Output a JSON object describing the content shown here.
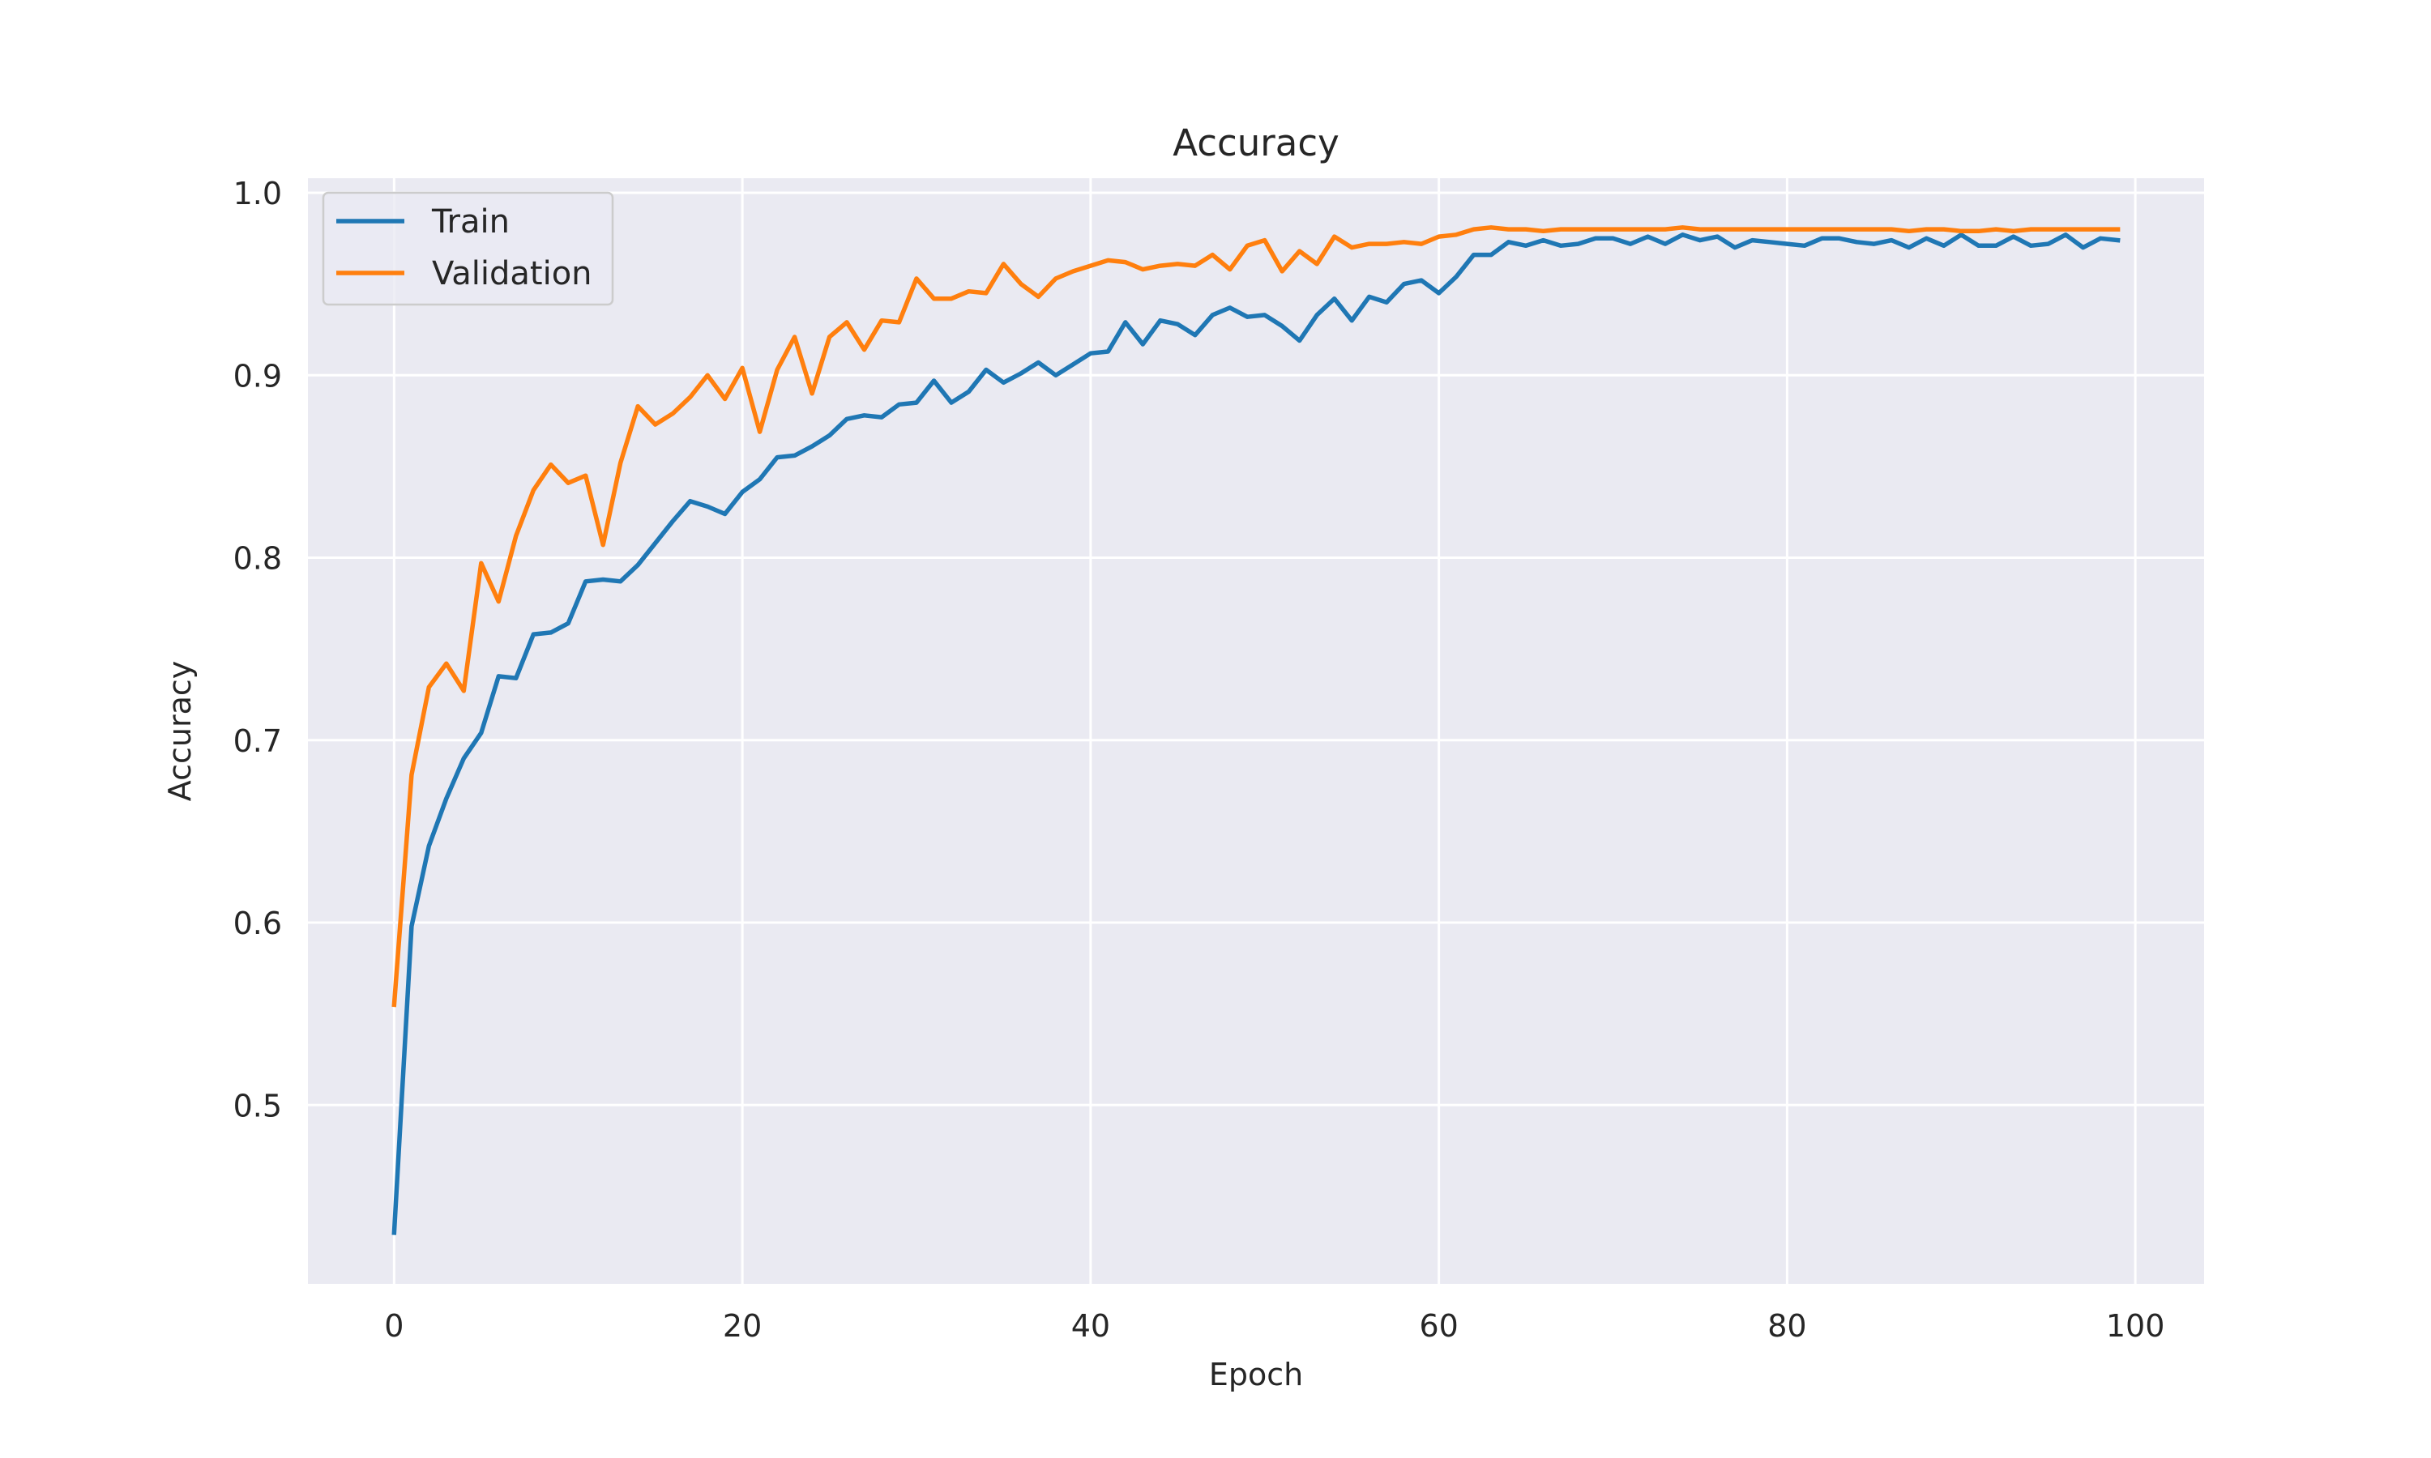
{
  "chart_data": {
    "type": "line",
    "title": "Accuracy",
    "xlabel": "Epoch",
    "ylabel": "Accuracy",
    "xlim": [
      -4.95,
      103.95
    ],
    "ylim": [
      0.402,
      1.008
    ],
    "x_ticks": [
      0,
      20,
      40,
      60,
      80,
      100
    ],
    "y_ticks": [
      0.5,
      0.6,
      0.7,
      0.8,
      0.9,
      1.0
    ],
    "y_tick_labels": [
      "0.5",
      "0.6",
      "0.7",
      "0.8",
      "0.9",
      "1.0"
    ],
    "grid": true,
    "legend_position": "top-left",
    "x": [
      0,
      1,
      2,
      3,
      4,
      5,
      6,
      7,
      8,
      9,
      10,
      11,
      12,
      13,
      14,
      15,
      16,
      17,
      18,
      19,
      20,
      21,
      22,
      23,
      24,
      25,
      26,
      27,
      28,
      29,
      30,
      31,
      32,
      33,
      34,
      35,
      36,
      37,
      38,
      39,
      40,
      41,
      42,
      43,
      44,
      45,
      46,
      47,
      48,
      49,
      50,
      51,
      52,
      53,
      54,
      55,
      56,
      57,
      58,
      59,
      60,
      61,
      62,
      63,
      64,
      65,
      66,
      67,
      68,
      69,
      70,
      71,
      72,
      73,
      74,
      75,
      76,
      77,
      78,
      79,
      80,
      81,
      82,
      83,
      84,
      85,
      86,
      87,
      88,
      89,
      90,
      91,
      92,
      93,
      94,
      95,
      96,
      97,
      98,
      99
    ],
    "series": [
      {
        "name": "Train",
        "color": "#1f77b4",
        "values": [
          0.43,
          0.598,
          0.642,
          0.668,
          0.69,
          0.704,
          0.735,
          0.734,
          0.758,
          0.759,
          0.764,
          0.787,
          0.788,
          0.787,
          0.796,
          0.808,
          0.82,
          0.831,
          0.828,
          0.824,
          0.836,
          0.843,
          0.855,
          0.856,
          0.861,
          0.867,
          0.876,
          0.878,
          0.877,
          0.884,
          0.885,
          0.897,
          0.885,
          0.891,
          0.903,
          0.896,
          0.901,
          0.907,
          0.9,
          0.906,
          0.912,
          0.913,
          0.929,
          0.917,
          0.93,
          0.928,
          0.922,
          0.933,
          0.937,
          0.932,
          0.933,
          0.927,
          0.919,
          0.933,
          0.942,
          0.93,
          0.943,
          0.94,
          0.95,
          0.952,
          0.945,
          0.954,
          0.966,
          0.966,
          0.973,
          0.971,
          0.974,
          0.971,
          0.972,
          0.975,
          0.975,
          0.972,
          0.976,
          0.972,
          0.977,
          0.974,
          0.976,
          0.97,
          0.974,
          0.973,
          0.972,
          0.971,
          0.975,
          0.975,
          0.973,
          0.972,
          0.974,
          0.97,
          0.975,
          0.971,
          0.977,
          0.971,
          0.971,
          0.976,
          0.971,
          0.972,
          0.977,
          0.97,
          0.975,
          0.974
        ]
      },
      {
        "name": "Validation",
        "color": "#ff7f0e",
        "values": [
          0.555,
          0.681,
          0.729,
          0.742,
          0.727,
          0.797,
          0.776,
          0.812,
          0.837,
          0.851,
          0.841,
          0.845,
          0.807,
          0.852,
          0.883,
          0.873,
          0.879,
          0.888,
          0.9,
          0.887,
          0.904,
          0.869,
          0.903,
          0.921,
          0.89,
          0.921,
          0.929,
          0.914,
          0.93,
          0.929,
          0.953,
          0.942,
          0.942,
          0.946,
          0.945,
          0.961,
          0.95,
          0.943,
          0.953,
          0.957,
          0.96,
          0.963,
          0.962,
          0.958,
          0.96,
          0.961,
          0.96,
          0.966,
          0.958,
          0.971,
          0.974,
          0.957,
          0.968,
          0.961,
          0.976,
          0.97,
          0.972,
          0.972,
          0.973,
          0.972,
          0.976,
          0.977,
          0.98,
          0.981,
          0.98,
          0.98,
          0.979,
          0.98,
          0.98,
          0.98,
          0.98,
          0.98,
          0.98,
          0.98,
          0.981,
          0.98,
          0.98,
          0.98,
          0.98,
          0.98,
          0.98,
          0.98,
          0.98,
          0.98,
          0.98,
          0.98,
          0.98,
          0.979,
          0.98,
          0.98,
          0.979,
          0.979,
          0.98,
          0.979,
          0.98,
          0.98,
          0.98,
          0.98,
          0.98,
          0.98
        ]
      }
    ]
  }
}
